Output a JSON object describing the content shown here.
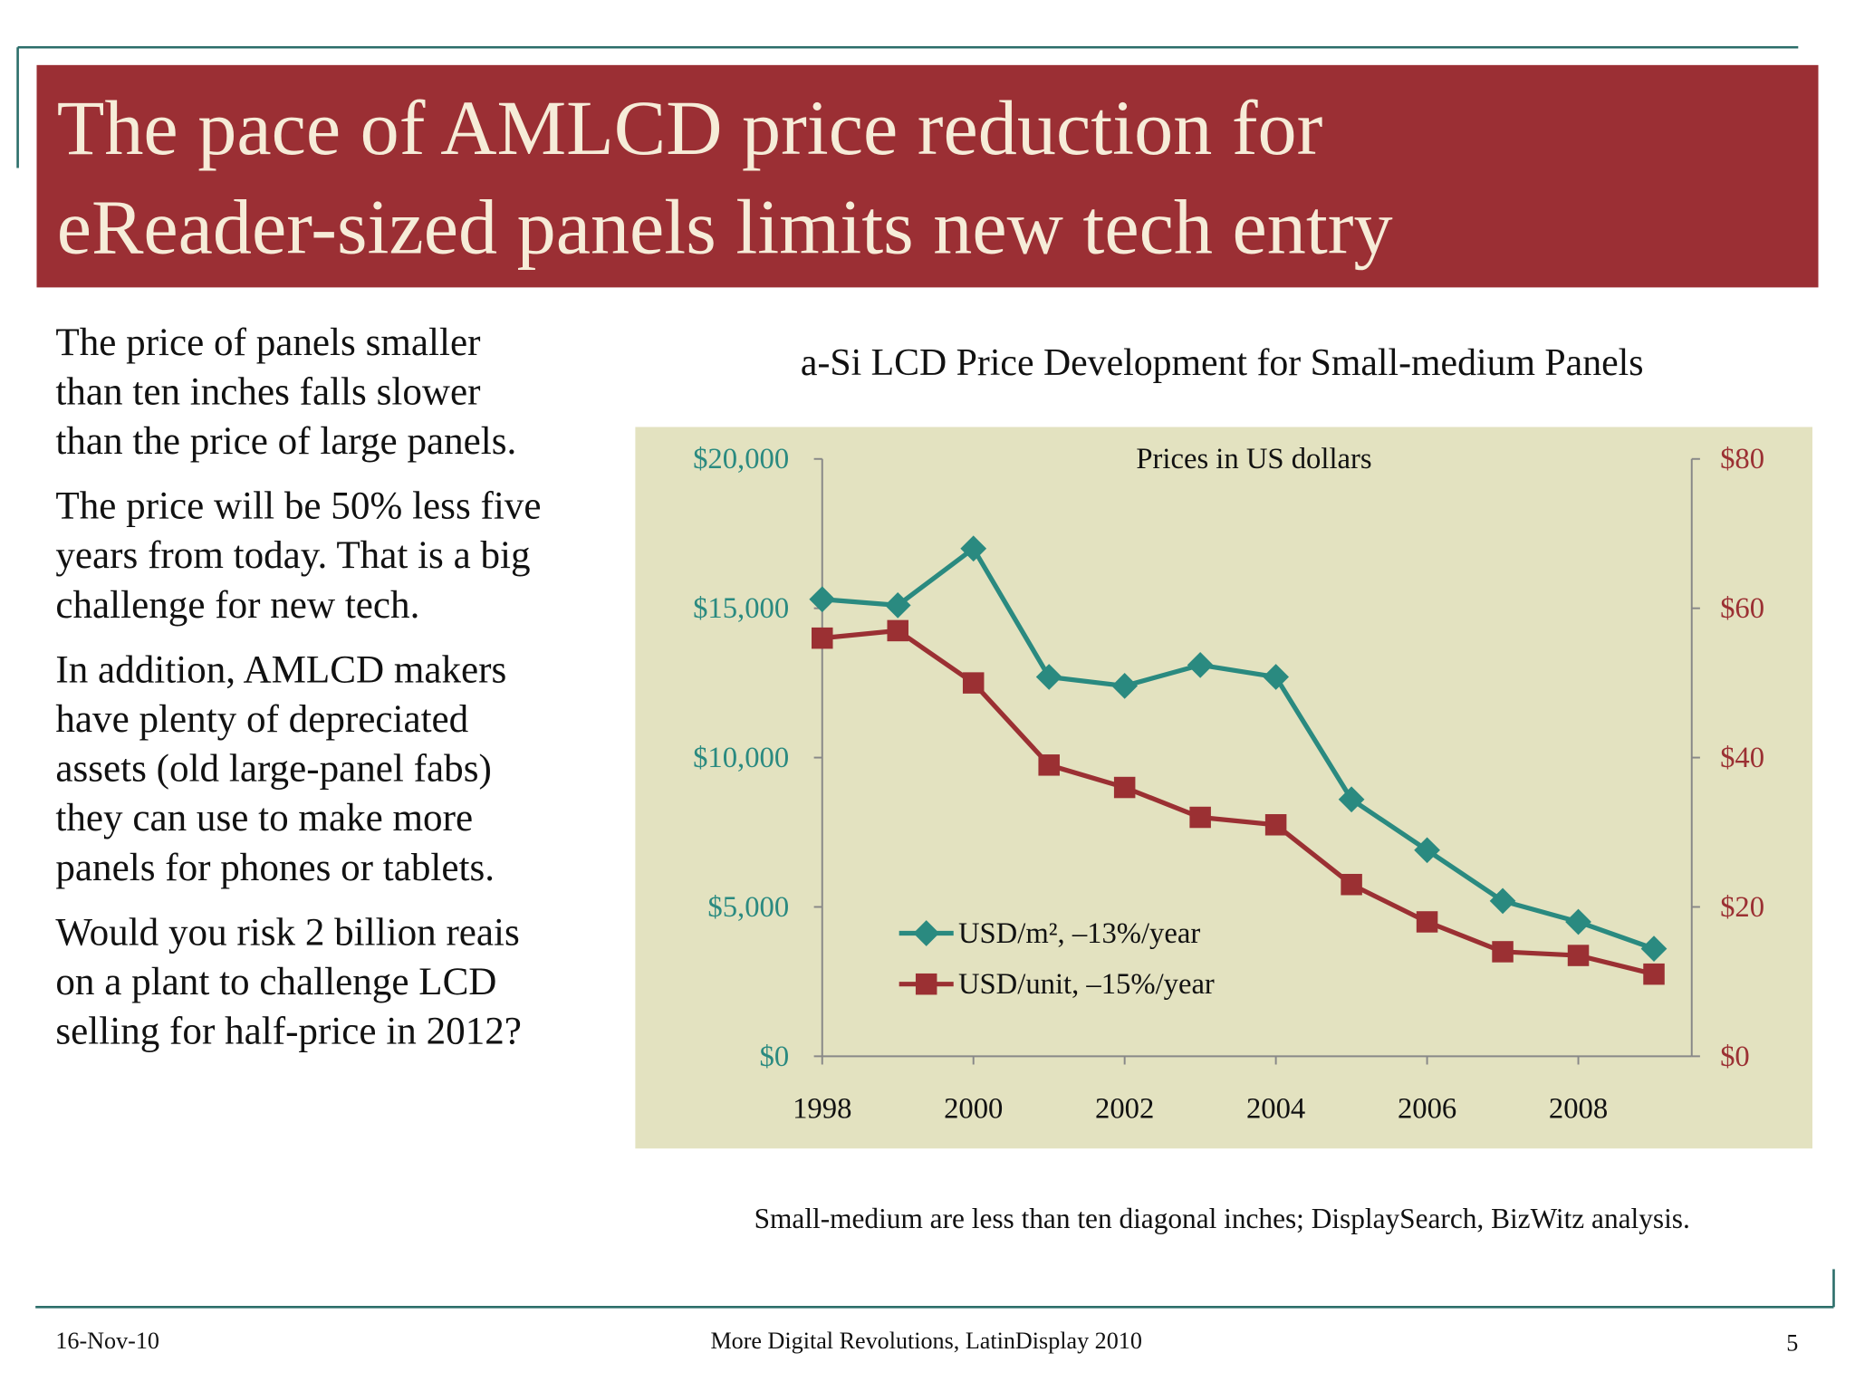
{
  "slide": {
    "title_lines": [
      "The pace of AMLCD price reduction for",
      "eReader-sized panels limits new tech entry"
    ],
    "paragraphs": [
      [
        "The price of panels smaller",
        "than ten inches falls slower",
        "than the price of large panels."
      ],
      [
        "The price will be 50% less five",
        "years from today. That is a big",
        "challenge for new tech."
      ],
      [
        "In addition, AMLCD makers",
        "have plenty of depreciated",
        "assets (old large-panel fabs)",
        "they can use to make more",
        "panels for phones or tablets."
      ],
      [
        "Would you risk 2 billion reais",
        "on a plant to challenge LCD",
        "selling for half-price in 2012?"
      ]
    ],
    "footnote": "Small-medium are less than ten diagonal inches; DisplaySearch, BizWitz analysis.",
    "footer_date": "16-Nov-10",
    "footer_center": "More Digital Revolutions, LatinDisplay 2010",
    "page_number": "5"
  },
  "chart_data": {
    "type": "line",
    "title": "a-Si LCD Price Development for Small-medium Panels",
    "annotation": "Prices in US dollars",
    "x": [
      1998,
      1999,
      2000,
      2001,
      2002,
      2003,
      2004,
      2005,
      2006,
      2007,
      2008,
      2009
    ],
    "xlim": [
      1998,
      2009.5
    ],
    "xticks": [
      1998,
      2000,
      2002,
      2004,
      2006,
      2008
    ],
    "ylim": [
      0,
      20000
    ],
    "yticks": [
      {
        "value": 0,
        "label": "$0"
      },
      {
        "value": 5000,
        "label": "$5,000"
      },
      {
        "value": 10000,
        "label": "$10,000"
      },
      {
        "value": 15000,
        "label": "$15,000"
      },
      {
        "value": 20000,
        "label": "$20,000"
      }
    ],
    "y2lim": [
      0,
      80
    ],
    "y2ticks": [
      {
        "value": 0,
        "label": "$0"
      },
      {
        "value": 20,
        "label": "$20"
      },
      {
        "value": 40,
        "label": "$40"
      },
      {
        "value": 60,
        "label": "$60"
      },
      {
        "value": 80,
        "label": "$80"
      }
    ],
    "series": [
      {
        "name": "USD/m², –13%/year",
        "color": "#2a8a80",
        "marker": "diamond",
        "values": [
          15300,
          15100,
          17000,
          12700,
          12400,
          13100,
          12700,
          8600,
          6900,
          5200,
          4500,
          3600
        ]
      },
      {
        "name": "USD/unit, –15%/year",
        "color": "#9b3033",
        "marker": "square",
        "axis": "y2",
        "values": [
          56,
          57,
          50,
          39,
          36,
          32,
          31,
          23,
          18,
          14,
          13.5,
          11
        ]
      }
    ],
    "grid": false
  }
}
